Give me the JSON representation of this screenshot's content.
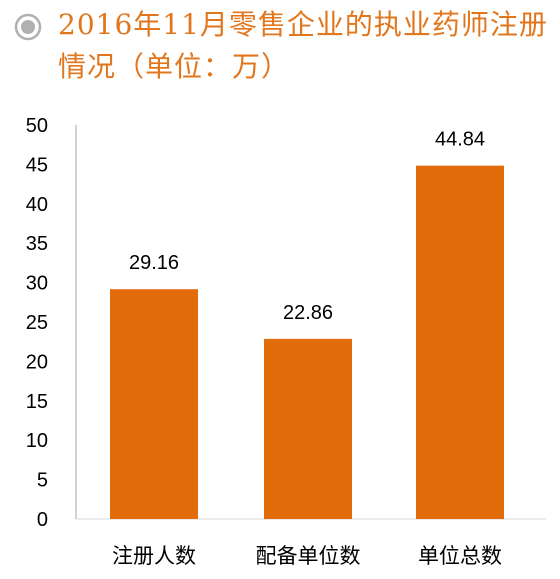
{
  "title": "2016年11月零售企业的执业药师注册情况（单位：万）",
  "accent_color": "#e36c0a",
  "bullet_icon": "radio-circle-icon",
  "chart_data": {
    "type": "bar",
    "title": "2016年11月零售企业的执业药师注册情况（单位：万）",
    "categories": [
      "注册人数",
      "配备单位数",
      "单位总数"
    ],
    "values": [
      29.16,
      22.86,
      44.84
    ],
    "data_labels": [
      "29.16",
      "22.86",
      "44.84"
    ],
    "ylim": [
      0,
      50
    ],
    "yticks": [
      0,
      5,
      10,
      15,
      20,
      25,
      30,
      35,
      40,
      45,
      50
    ],
    "xlabel": "",
    "ylabel": "",
    "grid": false,
    "bar_color": "#e36c0a"
  }
}
